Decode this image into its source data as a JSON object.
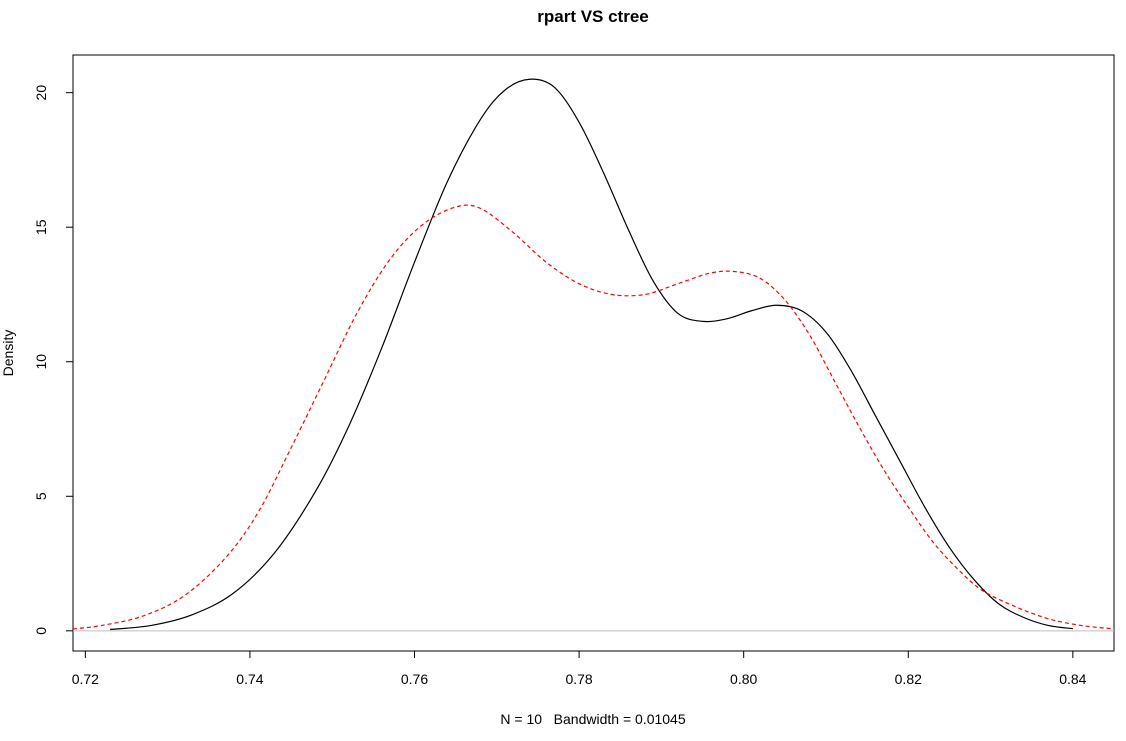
{
  "chart_data": {
    "type": "line",
    "title": "rpart VS ctree",
    "xlabel": "N = 10   Bandwidth = 0.01045",
    "ylabel": "Density",
    "xlim": [
      0.7185,
      0.845
    ],
    "ylim": [
      -0.75,
      21.4
    ],
    "x_ticks": [
      "0.72",
      "0.74",
      "0.76",
      "0.78",
      "0.80",
      "0.82",
      "0.84"
    ],
    "y_ticks": [
      "0",
      "5",
      "10",
      "15",
      "20"
    ],
    "grid": false,
    "legend": "none",
    "baseline": {
      "y": 0,
      "color": "#bebebe"
    },
    "series": [
      {
        "style": "solid",
        "color": "#000000",
        "points": [
          [
            0.723,
            0.05
          ],
          [
            0.728,
            0.2
          ],
          [
            0.733,
            0.6
          ],
          [
            0.738,
            1.4
          ],
          [
            0.743,
            2.9
          ],
          [
            0.748,
            5.2
          ],
          [
            0.752,
            7.6
          ],
          [
            0.756,
            10.5
          ],
          [
            0.76,
            13.7
          ],
          [
            0.764,
            16.7
          ],
          [
            0.768,
            19.0
          ],
          [
            0.771,
            20.1
          ],
          [
            0.774,
            20.5
          ],
          [
            0.777,
            20.2
          ],
          [
            0.78,
            18.9
          ],
          [
            0.783,
            17.0
          ],
          [
            0.786,
            14.9
          ],
          [
            0.789,
            13.0
          ],
          [
            0.792,
            11.8
          ],
          [
            0.795,
            11.5
          ],
          [
            0.798,
            11.6
          ],
          [
            0.801,
            11.9
          ],
          [
            0.804,
            12.1
          ],
          [
            0.807,
            11.9
          ],
          [
            0.81,
            11.1
          ],
          [
            0.813,
            9.7
          ],
          [
            0.816,
            8.0
          ],
          [
            0.819,
            6.3
          ],
          [
            0.822,
            4.6
          ],
          [
            0.825,
            3.1
          ],
          [
            0.828,
            1.9
          ],
          [
            0.831,
            1.0
          ],
          [
            0.834,
            0.5
          ],
          [
            0.837,
            0.2
          ],
          [
            0.84,
            0.08
          ]
        ]
      },
      {
        "style": "dashed",
        "color": "#ff0000",
        "points": [
          [
            0.7185,
            0.07
          ],
          [
            0.722,
            0.2
          ],
          [
            0.727,
            0.55
          ],
          [
            0.732,
            1.3
          ],
          [
            0.737,
            2.7
          ],
          [
            0.741,
            4.4
          ],
          [
            0.745,
            6.8
          ],
          [
            0.749,
            9.3
          ],
          [
            0.753,
            11.8
          ],
          [
            0.757,
            13.8
          ],
          [
            0.761,
            15.1
          ],
          [
            0.765,
            15.75
          ],
          [
            0.768,
            15.7
          ],
          [
            0.772,
            14.8
          ],
          [
            0.776,
            13.7
          ],
          [
            0.78,
            12.9
          ],
          [
            0.784,
            12.5
          ],
          [
            0.788,
            12.5
          ],
          [
            0.792,
            12.9
          ],
          [
            0.796,
            13.3
          ],
          [
            0.799,
            13.35
          ],
          [
            0.802,
            13.1
          ],
          [
            0.805,
            12.3
          ],
          [
            0.808,
            11.0
          ],
          [
            0.811,
            9.3
          ],
          [
            0.814,
            7.6
          ],
          [
            0.817,
            6.0
          ],
          [
            0.82,
            4.6
          ],
          [
            0.823,
            3.3
          ],
          [
            0.826,
            2.3
          ],
          [
            0.829,
            1.5
          ],
          [
            0.833,
            0.9
          ],
          [
            0.837,
            0.45
          ],
          [
            0.841,
            0.2
          ],
          [
            0.845,
            0.07
          ]
        ]
      }
    ]
  }
}
